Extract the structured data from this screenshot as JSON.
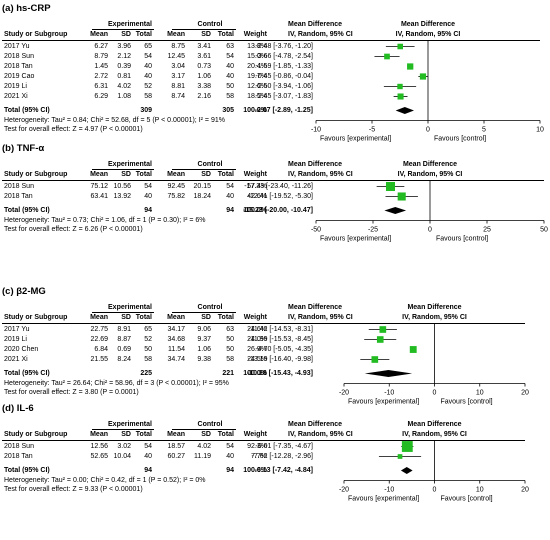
{
  "headers": {
    "experimental": "Experimental",
    "control": "Control",
    "mean_difference": "Mean Difference",
    "study": "Study or Subgroup",
    "mean": "Mean",
    "sd": "SD",
    "total": "Total",
    "weight": "Weight",
    "method_ci": "IV, Random, 95% CI"
  },
  "chart_data": [
    {
      "type": "forest",
      "title": "(a) hs-CRP",
      "studies": [
        {
          "name": "2017 Yu",
          "e_mean": "6.27",
          "e_sd": "3.96",
          "e_n": "65",
          "c_mean": "8.75",
          "c_sd": "3.41",
          "c_n": "63",
          "weight": "13.8%",
          "ci_text": "-2.48 [-3.76, -1.20]",
          "md": -2.48,
          "lo": -3.76,
          "hi": -1.2
        },
        {
          "name": "2018 Sun",
          "e_mean": "8.79",
          "e_sd": "2.12",
          "e_n": "54",
          "c_mean": "12.45",
          "c_sd": "3.61",
          "c_n": "54",
          "weight": "15.0%",
          "ci_text": "-3.66 [-4.78, -2.54]",
          "md": -3.66,
          "lo": -4.78,
          "hi": -2.54
        },
        {
          "name": "2018 Tan",
          "e_mean": "1.45",
          "e_sd": "0.39",
          "e_n": "40",
          "c_mean": "3.04",
          "c_sd": "0.73",
          "c_n": "40",
          "weight": "20.4%",
          "ci_text": "-1.59 [-1.85, -1.33]",
          "md": -1.59,
          "lo": -1.85,
          "hi": -1.33
        },
        {
          "name": "2019 Cao",
          "e_mean": "2.72",
          "e_sd": "0.81",
          "e_n": "40",
          "c_mean": "3.17",
          "c_sd": "1.06",
          "c_n": "40",
          "weight": "19.7%",
          "ci_text": "-0.45 [-0.86, -0.04]",
          "md": -0.45,
          "lo": -0.86,
          "hi": -0.04
        },
        {
          "name": "2019 Li",
          "e_mean": "6.31",
          "e_sd": "4.02",
          "e_n": "52",
          "c_mean": "8.81",
          "c_sd": "3.38",
          "c_n": "50",
          "weight": "12.6%",
          "ci_text": "-2.50 [-3.94, -1.06]",
          "md": -2.5,
          "lo": -3.94,
          "hi": -1.06
        },
        {
          "name": "2021 Xi",
          "e_mean": "6.29",
          "e_sd": "1.08",
          "e_n": "58",
          "c_mean": "8.74",
          "c_sd": "2.16",
          "c_n": "58",
          "weight": "18.5%",
          "ci_text": "-2.45 [-3.07, -1.83]",
          "md": -2.45,
          "lo": -3.07,
          "hi": -1.83
        }
      ],
      "total": {
        "label": "Total (95% CI)",
        "e_n": "309",
        "c_n": "305",
        "weight": "100.0%",
        "ci_text": "-2.07 [-2.89, -1.25]",
        "md": -2.07,
        "lo": -2.89,
        "hi": -1.25
      },
      "heterogeneity": "Heterogeneity: Tau² = 0.84; Chi² = 52.68, df = 5 (P < 0.00001); I² = 91%",
      "overall_test": "Test for overall effect: Z = 4.97 (P < 0.00001)",
      "axis": {
        "min": -10,
        "max": 10,
        "ticks": [
          -10,
          -5,
          0,
          5,
          10
        ]
      },
      "favours_left": "Favours [experimental]",
      "favours_right": "Favours [control]"
    },
    {
      "type": "forest",
      "title": "(b) TNF-α",
      "studies": [
        {
          "name": "2018 Sun",
          "e_mean": "75.12",
          "e_sd": "10.56",
          "e_n": "54",
          "c_mean": "92.45",
          "c_sd": "20.15",
          "c_n": "54",
          "weight": "57.4%",
          "ci_text": "-17.33 [-23.40, -11.26]",
          "md": -17.33,
          "lo": -23.4,
          "hi": -11.26
        },
        {
          "name": "2018 Tan",
          "e_mean": "63.41",
          "e_sd": "13.92",
          "e_n": "40",
          "c_mean": "75.82",
          "c_sd": "18.24",
          "c_n": "40",
          "weight": "42.6%",
          "ci_text": "-12.41 [-19.52, -5.30]",
          "md": -12.41,
          "lo": -19.52,
          "hi": -5.3
        }
      ],
      "total": {
        "label": "Total (95% CI)",
        "e_n": "94",
        "c_n": "94",
        "weight": "100.0%",
        "ci_text": "-15.23 [-20.00, -10.47]",
        "md": -15.23,
        "lo": -20.0,
        "hi": -10.47
      },
      "heterogeneity": "Heterogeneity: Tau² = 0.73; Chi² = 1.06, df = 1 (P = 0.30); I² = 6%",
      "overall_test": "Test for overall effect: Z = 6.26 (P < 0.00001)",
      "axis": {
        "min": -50,
        "max": 50,
        "ticks": [
          -50,
          -25,
          0,
          25,
          50
        ]
      },
      "favours_left": "Favours [experimental]",
      "favours_right": "Favours [control]"
    },
    {
      "type": "forest",
      "title": "(c) β2-MG",
      "studies": [
        {
          "name": "2017 Yu",
          "e_mean": "22.75",
          "e_sd": "8.91",
          "e_n": "65",
          "c_mean": "34.17",
          "c_sd": "9.06",
          "c_n": "63",
          "weight": "24.6%",
          "ci_text": "-11.42 [-14.53, -8.31]",
          "md": -11.42,
          "lo": -14.53,
          "hi": -8.31
        },
        {
          "name": "2019 Li",
          "e_mean": "22.69",
          "e_sd": "8.87",
          "e_n": "52",
          "c_mean": "34.68",
          "c_sd": "9.37",
          "c_n": "50",
          "weight": "24.0%",
          "ci_text": "-11.99 [-15.53, -8.45]",
          "md": -11.99,
          "lo": -15.53,
          "hi": -8.45
        },
        {
          "name": "2020 Chen",
          "e_mean": "6.84",
          "e_sd": "0.69",
          "e_n": "50",
          "c_mean": "11.54",
          "c_sd": "1.06",
          "c_n": "50",
          "weight": "26.9%",
          "ci_text": "-4.70 [-5.05, -4.35]",
          "md": -4.7,
          "lo": -5.05,
          "hi": -4.35
        },
        {
          "name": "2021 Xi",
          "e_mean": "21.55",
          "e_sd": "8.24",
          "e_n": "58",
          "c_mean": "34.74",
          "c_sd": "9.38",
          "c_n": "58",
          "weight": "24.5%",
          "ci_text": "-13.19 [-16.40, -9.98]",
          "md": -13.19,
          "lo": -16.4,
          "hi": -9.98
        }
      ],
      "total": {
        "label": "Total (95% CI)",
        "e_n": "225",
        "c_n": "221",
        "weight": "100.0%",
        "ci_text": "-10.18 [-15.43, -4.93]",
        "md": -10.18,
        "lo": -15.43,
        "hi": -4.93
      },
      "heterogeneity": "Heterogeneity: Tau² = 26.64; Chi² = 58.96, df = 3 (P < 0.00001); I² = 95%",
      "overall_test": "Test for overall effect: Z = 3.80 (P = 0.0001)",
      "axis": {
        "min": -20,
        "max": 20,
        "ticks": [
          -20,
          -10,
          0,
          10,
          20
        ]
      },
      "favours_left": "Favours [experimental]",
      "favours_right": "Favours [control]"
    },
    {
      "type": "forest",
      "title": "(d) IL-6",
      "studies": [
        {
          "name": "2018 Sun",
          "e_mean": "12.56",
          "e_sd": "3.02",
          "e_n": "54",
          "c_mean": "18.57",
          "c_sd": "4.02",
          "c_n": "54",
          "weight": "92.3%",
          "ci_text": "-6.01 [-7.35, -4.67]",
          "md": -6.01,
          "lo": -7.35,
          "hi": -4.67
        },
        {
          "name": "2018 Tan",
          "e_mean": "52.65",
          "e_sd": "10.04",
          "e_n": "40",
          "c_mean": "60.27",
          "c_sd": "11.19",
          "c_n": "40",
          "weight": "7.7%",
          "ci_text": "-7.62 [-12.28, -2.96]",
          "md": -7.62,
          "lo": -12.28,
          "hi": -2.96
        }
      ],
      "total": {
        "label": "Total (95% CI)",
        "e_n": "94",
        "c_n": "94",
        "weight": "100.0%",
        "ci_text": "-6.13 [-7.42, -4.84]",
        "md": -6.13,
        "lo": -7.42,
        "hi": -4.84
      },
      "heterogeneity": "Heterogeneity: Tau² = 0.00; Chi² = 0.42, df = 1 (P = 0.52); I² = 0%",
      "overall_test": "Test for overall effect: Z = 9.33 (P < 0.00001)",
      "axis": {
        "min": -20,
        "max": 20,
        "ticks": [
          -20,
          -10,
          0,
          10,
          20
        ]
      },
      "favours_left": "Favours [experimental]",
      "favours_right": "Favours [control]"
    }
  ],
  "colors": {
    "study_marker": "#22bb22",
    "total_marker": "#000000",
    "line": "#000000"
  }
}
